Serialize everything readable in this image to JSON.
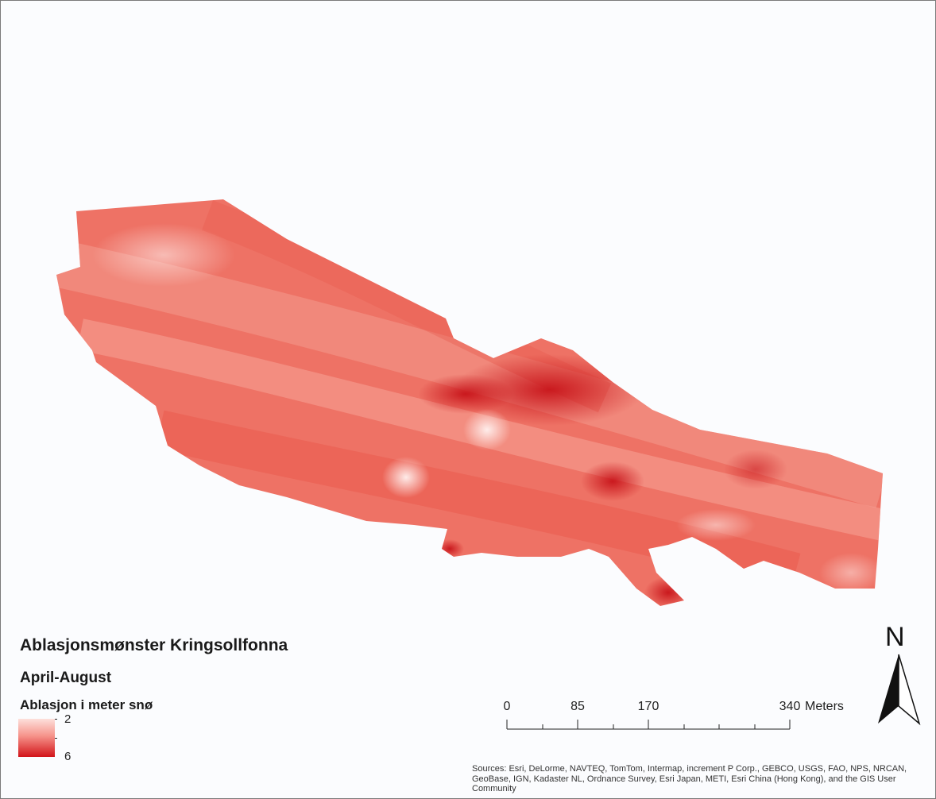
{
  "map": {
    "title": "Ablasjonsmønster Kringsollfonna",
    "subtitle": "April-August"
  },
  "legend": {
    "title": "Ablasjon i meter snø",
    "max_label": "2",
    "min_label": "6",
    "color_low": "#fde0dc",
    "color_high": "#d2141a"
  },
  "scale_bar": {
    "labels": [
      "0",
      "85",
      "170",
      "340"
    ],
    "unit": "Meters"
  },
  "north_arrow": {
    "letter": "N",
    "icon": "north-arrow-icon"
  },
  "attribution": {
    "text": "Sources: Esri, DeLorme, NAVTEQ, TomTom, Intermap, increment P Corp., GEBCO, USGS, FAO, NPS, NRCAN, GeoBase, IGN, Kadaster NL, Ordnance Survey, Esri Japan, METI, Esri China (Hong Kong), and the GIS User Community"
  }
}
